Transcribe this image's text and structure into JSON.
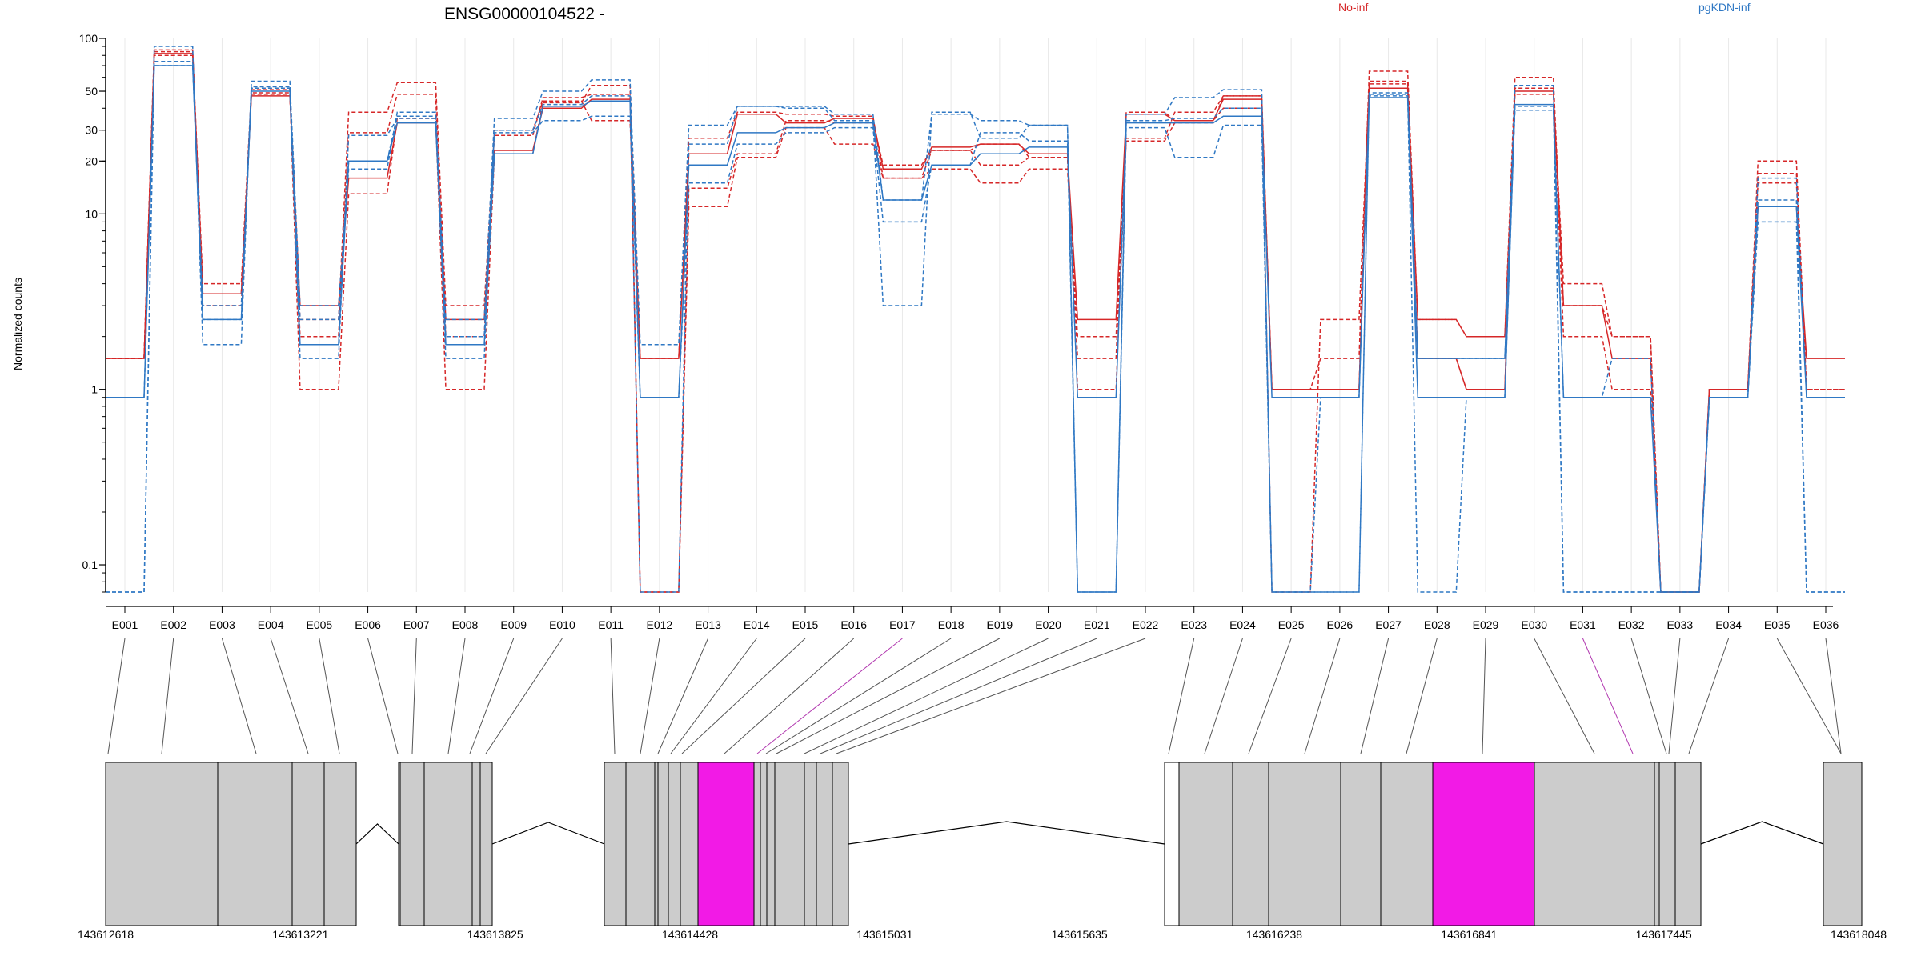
{
  "colors": {
    "no_inf": "#d62728",
    "pgkdn_inf": "#2f78c4",
    "exon_fill": "#cccccc",
    "highlight_fill": "#f21ae6",
    "highlight_line": "#b23ab0",
    "grid": "#e8e8e8"
  },
  "chart_data": {
    "type": "line",
    "title": "ENSG00000104522 -",
    "ylabel": "Normalized counts",
    "yscale": "log",
    "ylim": [
      0.07,
      100
    ],
    "yticks": [
      0.1,
      1,
      10,
      20,
      30,
      50,
      100
    ],
    "ytick_labels": [
      "0.1",
      "1",
      "10",
      "20",
      "30",
      "50",
      "100"
    ],
    "grid": true,
    "legend": [
      {
        "label": "No-inf",
        "color": "#d62728",
        "position": "top"
      },
      {
        "label": "pgKDN-inf",
        "color": "#2f78c4",
        "position": "top-right"
      }
    ],
    "categories": [
      "E001",
      "E002",
      "E003",
      "E004",
      "E005",
      "E006",
      "E007",
      "E008",
      "E009",
      "E010",
      "E011",
      "E012",
      "E013",
      "E014",
      "E015",
      "E016",
      "E017",
      "E018",
      "E019",
      "E020",
      "E021",
      "E022",
      "E023",
      "E024",
      "E025",
      "E026",
      "E027",
      "E028",
      "E029",
      "E030",
      "E031",
      "E032",
      "E033",
      "E034",
      "E035",
      "E036"
    ],
    "series": [
      {
        "group": "No-inf",
        "style": "solid",
        "values": [
          1.5,
          82,
          3.5,
          47,
          3,
          16,
          33,
          2.5,
          23,
          40,
          45,
          1.5,
          22,
          37,
          33,
          35,
          18,
          24,
          25,
          22,
          2.5,
          37,
          34,
          45,
          1,
          1,
          52,
          1.5,
          1,
          50,
          3,
          1.5,
          0.07,
          1,
          11,
          1.5
        ]
      },
      {
        "group": "No-inf",
        "style": "dashed",
        "values": [
          1.5,
          80,
          3,
          49,
          1,
          13,
          35,
          1,
          22,
          43,
          54,
          0.07,
          11,
          21,
          31,
          25,
          16,
          18,
          15,
          18,
          2,
          26,
          33,
          47,
          0.07,
          2.5,
          55,
          2.5,
          2,
          48,
          4,
          2,
          0.07,
          1,
          20,
          1
        ]
      },
      {
        "group": "No-inf",
        "style": "dashed",
        "values": [
          1.5,
          86,
          4,
          51,
          2.5,
          38,
          56,
          3,
          28,
          46,
          48,
          0.07,
          14,
          22,
          34,
          33,
          19,
          23,
          19,
          21,
          1,
          27,
          38,
          47,
          1,
          1.5,
          65,
          2.5,
          2,
          60,
          3,
          2,
          0.07,
          1,
          17,
          1
        ]
      },
      {
        "group": "No-inf",
        "style": "dashed",
        "values": [
          1.5,
          84,
          3.5,
          48,
          2,
          29,
          48,
          2,
          30,
          44,
          34,
          1.5,
          27,
          38,
          37,
          36,
          16,
          23,
          25,
          21,
          1.5,
          38,
          34,
          40,
          1,
          1,
          57,
          1.5,
          1,
          52,
          2,
          1,
          0.07,
          1,
          15,
          1
        ]
      },
      {
        "group": "pgKDN-inf",
        "style": "solid",
        "values": [
          0.9,
          70,
          2.5,
          50,
          1.8,
          20,
          33,
          1.8,
          22,
          41,
          44,
          0.9,
          19,
          29,
          31,
          33,
          12,
          19,
          22,
          24,
          0.9,
          33,
          33,
          36,
          0.9,
          0.9,
          46,
          0.9,
          0.9,
          42,
          0.9,
          0.9,
          0.07,
          0.9,
          11,
          0.9
        ]
      },
      {
        "group": "pgKDN-inf",
        "style": "dashed",
        "values": [
          0.07,
          90,
          1.8,
          57,
          3,
          18,
          38,
          2.5,
          35,
          50,
          58,
          1.8,
          32,
          41,
          41,
          37,
          12,
          37,
          34,
          32,
          0.07,
          37,
          46,
          51,
          0.07,
          0.07,
          49,
          1.5,
          1.5,
          54,
          0.07,
          0.07,
          0.07,
          0.9,
          16,
          0.9
        ]
      },
      {
        "group": "pgKDN-inf",
        "style": "dashed",
        "values": [
          0.07,
          74,
          2.5,
          53,
          2.5,
          20,
          36,
          1.5,
          29,
          34,
          36,
          0.9,
          15,
          25,
          29,
          31,
          9,
          19,
          29,
          26,
          0.07,
          31,
          21,
          32,
          0.07,
          0.9,
          47,
          1.5,
          1.5,
          39,
          0.9,
          1.5,
          0.07,
          0.9,
          9,
          0.07
        ]
      },
      {
        "group": "pgKDN-inf",
        "style": "dashed",
        "values": [
          0.9,
          70,
          3,
          52,
          1.5,
          28,
          35,
          2,
          30,
          42,
          47,
          0.07,
          25,
          41,
          40,
          34,
          3,
          38,
          27,
          32,
          0.07,
          34,
          35,
          40,
          0.07,
          0.07,
          48,
          0.07,
          0.9,
          41,
          0.07,
          0.07,
          0.07,
          0.9,
          12,
          0.07
        ]
      }
    ],
    "gene_model": {
      "coord_ticks": [
        "143612618",
        "143613221",
        "143613825",
        "143614428",
        "143615031",
        "143615635",
        "143616238",
        "143616841",
        "143617445",
        "143618048"
      ],
      "highlighted_exons": [
        "E014",
        "E030"
      ]
    }
  }
}
